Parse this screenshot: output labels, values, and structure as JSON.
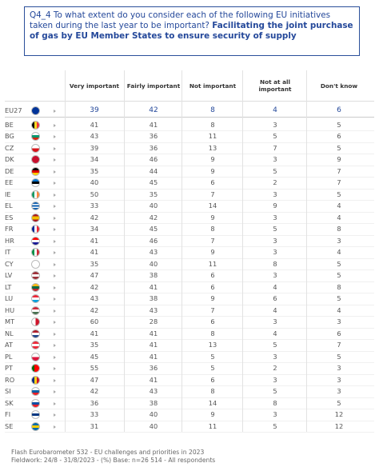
{
  "header": {
    "question": "Q4_4 To what extent do you consider each of the following EU initiatives taken during the last year to be important?",
    "topic": "Facilitating the joint purchase of gas by EU Member States to ensure security of supply"
  },
  "table": {
    "columns": [
      "Very important",
      "Fairly important",
      "Not important",
      "Not at all important",
      "Don't know"
    ],
    "rows": [
      {
        "label": "EU27",
        "values": [
          39,
          42,
          8,
          4,
          6
        ]
      },
      {
        "label": "BE",
        "values": [
          41,
          41,
          8,
          3,
          5
        ]
      },
      {
        "label": "BG",
        "values": [
          43,
          36,
          11,
          5,
          6
        ]
      },
      {
        "label": "CZ",
        "values": [
          39,
          36,
          13,
          7,
          5
        ]
      },
      {
        "label": "DK",
        "values": [
          34,
          46,
          9,
          3,
          9
        ]
      },
      {
        "label": "DE",
        "values": [
          35,
          44,
          9,
          5,
          7
        ]
      },
      {
        "label": "EE",
        "values": [
          40,
          45,
          6,
          2,
          7
        ]
      },
      {
        "label": "IE",
        "values": [
          50,
          35,
          7,
          3,
          5
        ]
      },
      {
        "label": "EL",
        "values": [
          33,
          40,
          14,
          9,
          4
        ]
      },
      {
        "label": "ES",
        "values": [
          42,
          42,
          9,
          3,
          4
        ]
      },
      {
        "label": "FR",
        "values": [
          34,
          45,
          8,
          5,
          8
        ]
      },
      {
        "label": "HR",
        "values": [
          41,
          46,
          7,
          3,
          3
        ]
      },
      {
        "label": "IT",
        "values": [
          41,
          43,
          9,
          3,
          4
        ]
      },
      {
        "label": "CY",
        "values": [
          35,
          40,
          11,
          8,
          5
        ]
      },
      {
        "label": "LV",
        "values": [
          47,
          38,
          6,
          3,
          5
        ]
      },
      {
        "label": "LT",
        "values": [
          42,
          41,
          6,
          4,
          8
        ]
      },
      {
        "label": "LU",
        "values": [
          43,
          38,
          9,
          6,
          5
        ]
      },
      {
        "label": "HU",
        "values": [
          42,
          43,
          7,
          4,
          4
        ]
      },
      {
        "label": "MT",
        "values": [
          60,
          28,
          6,
          3,
          3
        ]
      },
      {
        "label": "NL",
        "values": [
          41,
          41,
          8,
          4,
          6
        ]
      },
      {
        "label": "AT",
        "values": [
          35,
          41,
          13,
          5,
          7
        ]
      },
      {
        "label": "PL",
        "values": [
          45,
          41,
          5,
          3,
          5
        ]
      },
      {
        "label": "PT",
        "values": [
          55,
          36,
          5,
          2,
          3
        ]
      },
      {
        "label": "RO",
        "values": [
          47,
          41,
          6,
          3,
          3
        ]
      },
      {
        "label": "SI",
        "values": [
          42,
          43,
          8,
          5,
          3
        ]
      },
      {
        "label": "SK",
        "values": [
          36,
          38,
          14,
          8,
          5
        ]
      },
      {
        "label": "FI",
        "values": [
          33,
          40,
          9,
          3,
          12
        ]
      },
      {
        "label": "SE",
        "values": [
          31,
          40,
          11,
          5,
          12
        ]
      }
    ]
  },
  "footer": {
    "source": "Flash Eurobarometer 532 - EU challenges and priorities in 2023",
    "fieldwork": "Fieldwork: 24/8 - 31/8/2023 - (%) Base: n=26 514 - All respondents"
  }
}
